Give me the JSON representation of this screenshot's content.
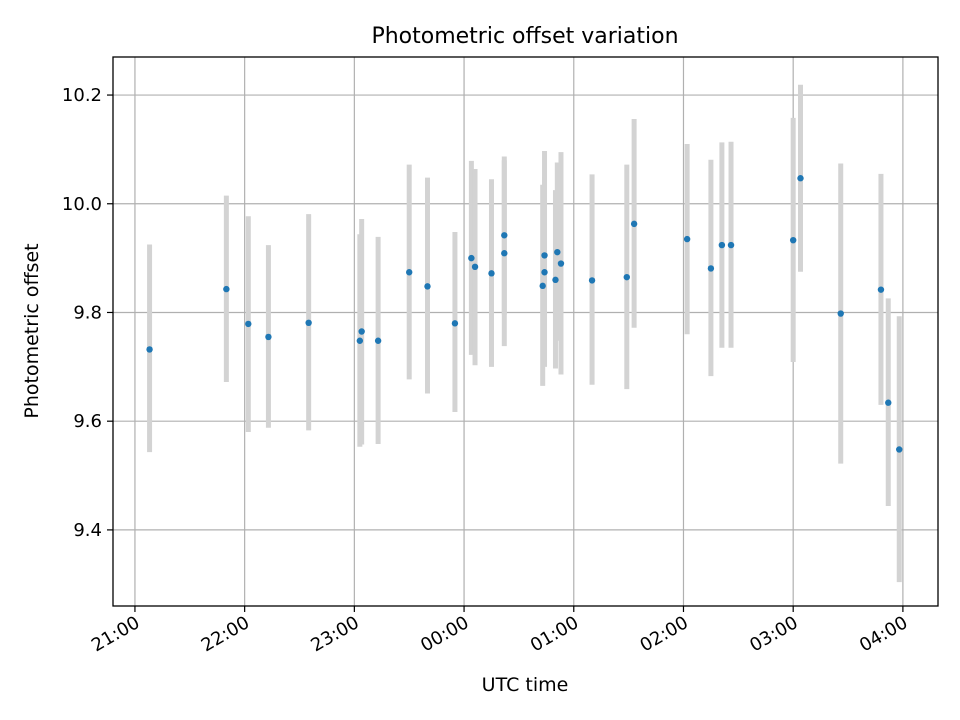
{
  "chart_data": {
    "type": "scatter",
    "title": "Photometric offset variation",
    "xlabel": "UTC time",
    "ylabel": "Photometric offset",
    "x_tick_labels": [
      "21:00",
      "22:00",
      "23:00",
      "00:00",
      "01:00",
      "02:00",
      "03:00",
      "04:00"
    ],
    "x_tick_hours": [
      21,
      22,
      23,
      24,
      25,
      26,
      27,
      28
    ],
    "xlim_hours": [
      20.8,
      28.32
    ],
    "y_ticks": [
      9.4,
      9.6,
      9.8,
      10.0,
      10.2
    ],
    "y_tick_labels": [
      "9.4",
      "9.6",
      "9.8",
      "10.0",
      "10.2"
    ],
    "ylim": [
      9.26,
      10.27
    ],
    "grid": true,
    "marker_color": "#1f77b4",
    "errorbar_color": "#d3d3d3",
    "points": [
      {
        "t": "21:08",
        "y": 9.732,
        "lo": 9.543,
        "hi": 9.925
      },
      {
        "t": "21:50",
        "y": 9.843,
        "lo": 9.672,
        "hi": 10.015
      },
      {
        "t": "22:02",
        "y": 9.779,
        "lo": 9.58,
        "hi": 9.977
      },
      {
        "t": "22:13",
        "y": 9.755,
        "lo": 9.588,
        "hi": 9.924
      },
      {
        "t": "22:35",
        "y": 9.781,
        "lo": 9.583,
        "hi": 9.981
      },
      {
        "t": "23:03",
        "y": 9.748,
        "lo": 9.553,
        "hi": 9.944
      },
      {
        "t": "23:04",
        "y": 9.765,
        "lo": 9.557,
        "hi": 9.972
      },
      {
        "t": "23:13",
        "y": 9.748,
        "lo": 9.558,
        "hi": 9.939
      },
      {
        "t": "23:30",
        "y": 9.874,
        "lo": 9.677,
        "hi": 10.072
      },
      {
        "t": "23:40",
        "y": 9.848,
        "lo": 9.651,
        "hi": 10.048
      },
      {
        "t": "23:55",
        "y": 9.78,
        "lo": 9.617,
        "hi": 9.948
      },
      {
        "t": "00:04",
        "y": 9.9,
        "lo": 9.722,
        "hi": 10.079
      },
      {
        "t": "00:06",
        "y": 9.884,
        "lo": 9.703,
        "hi": 10.064
      },
      {
        "t": "00:15",
        "y": 9.872,
        "lo": 9.7,
        "hi": 10.045
      },
      {
        "t": "00:22",
        "y": 9.942,
        "lo": 9.796,
        "hi": 10.087
      },
      {
        "t": "00:22",
        "y": 9.909,
        "lo": 9.738,
        "hi": 10.08
      },
      {
        "t": "00:43",
        "y": 9.849,
        "lo": 9.665,
        "hi": 10.035
      },
      {
        "t": "00:44",
        "y": 9.905,
        "lo": 9.713,
        "hi": 10.097
      },
      {
        "t": "00:44",
        "y": 9.874,
        "lo": 9.7,
        "hi": 10.048
      },
      {
        "t": "00:50",
        "y": 9.86,
        "lo": 9.697,
        "hi": 10.025
      },
      {
        "t": "00:51",
        "y": 9.911,
        "lo": 9.748,
        "hi": 10.076
      },
      {
        "t": "00:53",
        "y": 9.89,
        "lo": 9.686,
        "hi": 10.095
      },
      {
        "t": "01:10",
        "y": 9.859,
        "lo": 9.667,
        "hi": 10.054
      },
      {
        "t": "01:29",
        "y": 9.865,
        "lo": 9.659,
        "hi": 10.072
      },
      {
        "t": "01:33",
        "y": 9.963,
        "lo": 9.772,
        "hi": 10.156
      },
      {
        "t": "02:02",
        "y": 9.935,
        "lo": 9.76,
        "hi": 10.11
      },
      {
        "t": "02:15",
        "y": 9.881,
        "lo": 9.683,
        "hi": 10.081
      },
      {
        "t": "02:21",
        "y": 9.924,
        "lo": 9.735,
        "hi": 10.113
      },
      {
        "t": "02:26",
        "y": 9.924,
        "lo": 9.735,
        "hi": 10.114
      },
      {
        "t": "03:00",
        "y": 9.933,
        "lo": 9.709,
        "hi": 10.158
      },
      {
        "t": "03:04",
        "y": 10.047,
        "lo": 9.875,
        "hi": 10.219
      },
      {
        "t": "03:26",
        "y": 9.798,
        "lo": 9.522,
        "hi": 10.074
      },
      {
        "t": "03:48",
        "y": 9.842,
        "lo": 9.63,
        "hi": 10.055
      },
      {
        "t": "03:52",
        "y": 9.634,
        "lo": 9.444,
        "hi": 9.826
      },
      {
        "t": "03:58",
        "y": 9.548,
        "lo": 9.304,
        "hi": 9.793
      }
    ]
  }
}
